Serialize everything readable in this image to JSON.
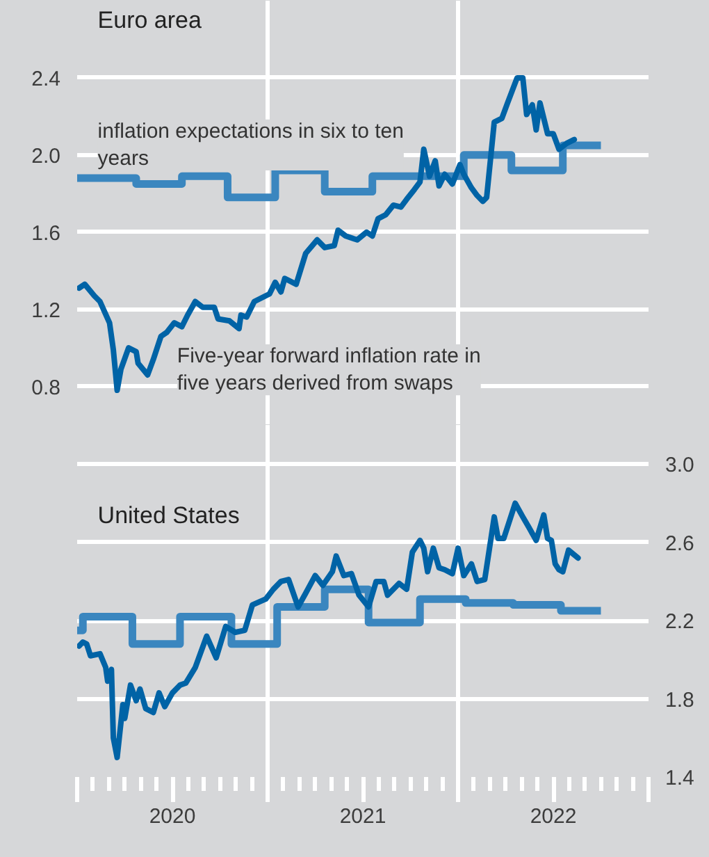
{
  "chart_data": [
    {
      "type": "line",
      "title": "Euro area",
      "xlim": [
        2020,
        2023
      ],
      "xticks": [
        {
          "value": 2021,
          "label": null
        },
        {
          "value": 2022,
          "label": null
        }
      ],
      "ylim": [
        0.6,
        2.8
      ],
      "yticks": [
        0.8,
        1.2,
        1.6,
        {
          "value": 2,
          "label": "2.0"
        },
        2.4
      ],
      "grid": true,
      "tick_labels": "y",
      "line_style": "solid",
      "series": [
        {
          "name": "inflation expectations in six to ten years",
          "type": "step",
          "color": "#3a86bf",
          "x": [
            2020.0,
            2020.31,
            2020.55,
            2020.79,
            2021.04,
            2021.3,
            2021.55,
            2022.03,
            2022.28,
            2022.55,
            2022.75
          ],
          "values": [
            1.88,
            1.85,
            1.89,
            1.78,
            1.92,
            1.81,
            1.89,
            2.0,
            1.92,
            2.05,
            2.05
          ]
        },
        {
          "name": "Five-year forward inflation rate in five years derived from swaps",
          "color": "#0063a6",
          "x": [
            2020.01,
            2020.04,
            2020.09,
            2020.12,
            2020.17,
            2020.19,
            2020.21,
            2020.23,
            2020.27,
            2020.31,
            2020.32,
            2020.37,
            2020.4,
            2020.44,
            2020.47,
            2020.51,
            2020.55,
            2020.58,
            2020.62,
            2020.66,
            2020.72,
            2020.74,
            2020.8,
            2020.85,
            2020.86,
            2020.89,
            2020.93,
            2020.97,
            2021.01,
            2021.04,
            2021.07,
            2021.09,
            2021.15,
            2021.2,
            2021.26,
            2021.3,
            2021.35,
            2021.37,
            2021.41,
            2021.47,
            2021.52,
            2021.55,
            2021.58,
            2021.62,
            2021.66,
            2021.7,
            2021.73,
            2021.77,
            2021.8,
            2021.82,
            2021.85,
            2021.88,
            2021.9,
            2021.93,
            2021.97,
            2022.01,
            2022.03,
            2022.07,
            2022.1,
            2022.13,
            2022.15,
            2022.19,
            2022.23,
            2022.26,
            2022.31,
            2022.34,
            2022.36,
            2022.39,
            2022.41,
            2022.43,
            2022.47,
            2022.5,
            2022.53,
            2022.57,
            2022.61
          ],
          "values": [
            1.31,
            1.33,
            1.27,
            1.24,
            1.13,
            0.99,
            0.78,
            0.89,
            1.0,
            0.98,
            0.92,
            0.86,
            0.94,
            1.06,
            1.08,
            1.13,
            1.11,
            1.17,
            1.24,
            1.21,
            1.21,
            1.15,
            1.14,
            1.1,
            1.17,
            1.16,
            1.24,
            1.26,
            1.28,
            1.34,
            1.29,
            1.36,
            1.33,
            1.49,
            1.56,
            1.52,
            1.53,
            1.61,
            1.58,
            1.56,
            1.6,
            1.58,
            1.67,
            1.69,
            1.74,
            1.73,
            1.77,
            1.82,
            1.86,
            2.03,
            1.89,
            1.97,
            1.84,
            1.9,
            1.85,
            1.95,
            1.9,
            1.83,
            1.79,
            1.76,
            1.78,
            2.17,
            2.19,
            2.27,
            2.4,
            2.4,
            2.21,
            2.26,
            2.13,
            2.27,
            2.11,
            2.11,
            2.03,
            2.06,
            2.08
          ]
        }
      ]
    },
    {
      "type": "line",
      "title": "United States",
      "xlim": [
        2020,
        2023
      ],
      "xticks": [
        {
          "value": 2020,
          "label": null
        },
        {
          "value": 2020.5,
          "label": "2020"
        },
        {
          "value": 2021,
          "label": null
        },
        {
          "value": 2021.5,
          "label": "2021"
        },
        {
          "value": 2022,
          "label": null
        },
        {
          "value": 2022.5,
          "label": "2022"
        },
        {
          "value": 2023,
          "label": null
        }
      ],
      "y2lim": [
        1.4,
        3.2
      ],
      "y2ticks": [
        1.4,
        1.8,
        2.2,
        2.6,
        {
          "value": 3,
          "label": "3.0"
        }
      ],
      "grid": true,
      "line_style": "solid",
      "series": [
        {
          "type": "step",
          "axis": "y2",
          "color": "#3a86bf",
          "x": [
            2020.0,
            2020.03,
            2020.29,
            2020.54,
            2020.81,
            2021.05,
            2021.3,
            2021.53,
            2021.8,
            2022.04,
            2022.29,
            2022.54,
            2022.75
          ],
          "values": [
            2.15,
            2.22,
            2.08,
            2.22,
            2.08,
            2.27,
            2.36,
            2.19,
            2.31,
            2.29,
            2.28,
            2.25,
            2.25
          ]
        },
        {
          "axis": "y2",
          "color": "#0063a6",
          "x": [
            2020.01,
            2020.03,
            2020.05,
            2020.07,
            2020.12,
            2020.15,
            2020.16,
            2020.18,
            2020.19,
            2020.21,
            2020.24,
            2020.25,
            2020.28,
            2020.31,
            2020.33,
            2020.36,
            2020.4,
            2020.43,
            2020.46,
            2020.5,
            2020.54,
            2020.57,
            2020.62,
            2020.68,
            2020.73,
            2020.78,
            2020.83,
            2020.88,
            2020.92,
            2020.99,
            2021.03,
            2021.07,
            2021.11,
            2021.16,
            2021.2,
            2021.25,
            2021.29,
            2021.34,
            2021.36,
            2021.4,
            2021.44,
            2021.48,
            2021.53,
            2021.57,
            2021.61,
            2021.63,
            2021.69,
            2021.73,
            2021.76,
            2021.8,
            2021.82,
            2021.84,
            2021.87,
            2021.9,
            2021.93,
            2021.97,
            2022.0,
            2022.03,
            2022.07,
            2022.1,
            2022.14,
            2022.19,
            2022.21,
            2022.24,
            2022.3,
            2022.34,
            2022.37,
            2022.41,
            2022.45,
            2022.47,
            2022.49,
            2022.51,
            2022.53,
            2022.55,
            2022.58,
            2022.63
          ],
          "values": [
            2.07,
            2.09,
            2.08,
            2.02,
            2.03,
            1.96,
            1.89,
            1.95,
            1.6,
            1.5,
            1.77,
            1.7,
            1.87,
            1.79,
            1.85,
            1.75,
            1.73,
            1.83,
            1.76,
            1.83,
            1.87,
            1.88,
            1.96,
            2.12,
            2.01,
            2.17,
            2.14,
            2.15,
            2.28,
            2.31,
            2.36,
            2.4,
            2.41,
            2.27,
            2.34,
            2.43,
            2.38,
            2.45,
            2.53,
            2.43,
            2.44,
            2.33,
            2.27,
            2.4,
            2.4,
            2.33,
            2.39,
            2.36,
            2.55,
            2.61,
            2.57,
            2.45,
            2.57,
            2.47,
            2.46,
            2.44,
            2.57,
            2.43,
            2.49,
            2.4,
            2.41,
            2.73,
            2.62,
            2.62,
            2.8,
            2.73,
            2.68,
            2.61,
            2.74,
            2.62,
            2.61,
            2.49,
            2.46,
            2.45,
            2.56,
            2.52
          ]
        }
      ]
    }
  ]
}
